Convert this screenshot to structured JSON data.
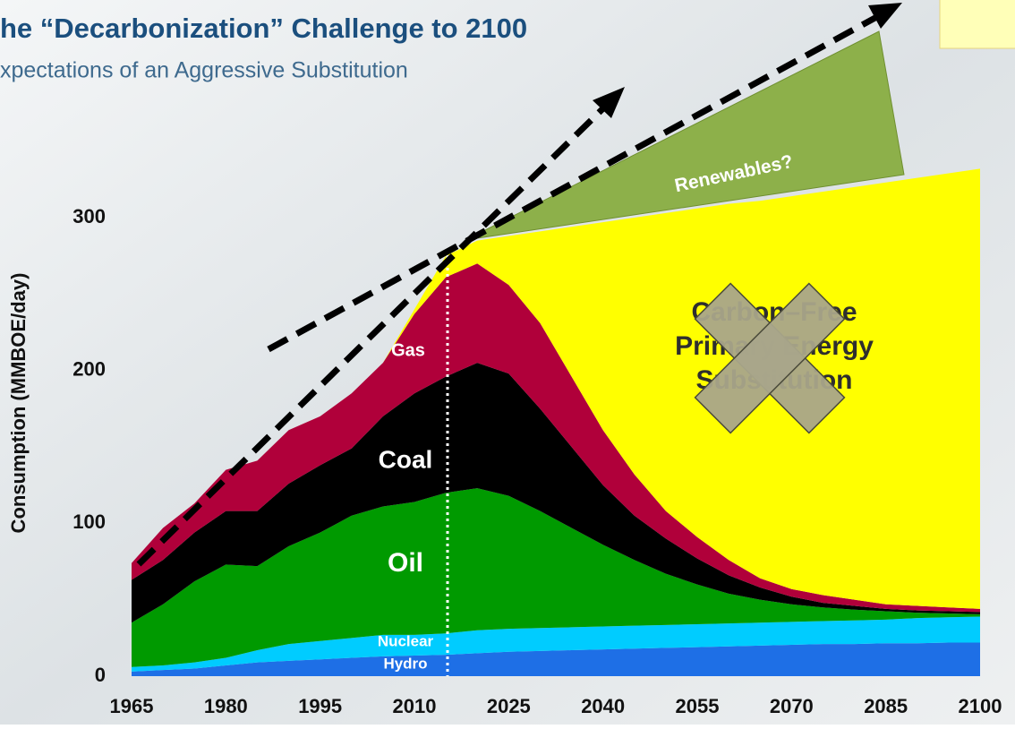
{
  "title": "he “Decarbonization” Challenge to 2100",
  "subtitle": "xpectations of an Aggressive Substitution",
  "chart_data": {
    "type": "stacked-area",
    "y_label": "Consumption (MMBOE/day)",
    "annotation": "Renewables?",
    "x": [
      1965,
      1970,
      1975,
      1980,
      1985,
      1990,
      1995,
      2000,
      2005,
      2010,
      2015,
      2020,
      2025,
      2030,
      2035,
      2040,
      2045,
      2050,
      2055,
      2060,
      2065,
      2070,
      2075,
      2080,
      2085,
      2090,
      2095,
      2100
    ],
    "xlim": [
      1965,
      2100
    ],
    "xticks": [
      1965,
      1980,
      1995,
      2010,
      2025,
      2040,
      2055,
      2070,
      2085,
      2100
    ],
    "ylim": [
      0,
      300
    ],
    "yticks": [
      0,
      100,
      200,
      300
    ],
    "series": [
      {
        "name": "Hydro",
        "color": "#1e6fe6",
        "values": [
          3,
          4,
          5,
          7,
          9,
          10,
          11,
          12,
          13,
          13.5,
          14,
          15,
          16,
          16.5,
          17,
          17.5,
          18,
          18.5,
          19,
          19.5,
          20,
          20.5,
          21,
          21,
          21.5,
          21.5,
          22,
          22
        ]
      },
      {
        "name": "Nuclear",
        "color": "#00ccff",
        "values": [
          3,
          3,
          4,
          5,
          8,
          11,
          12,
          13,
          14,
          13.5,
          14,
          15,
          15,
          15,
          15,
          15,
          15,
          15,
          15,
          15,
          15,
          15,
          15,
          15.5,
          15.5,
          16.5,
          16.5,
          17
        ]
      },
      {
        "name": "Oil",
        "color": "#009a00",
        "values": [
          29,
          40,
          53,
          61,
          55,
          64,
          71,
          80,
          84,
          87,
          92,
          93,
          87,
          76.5,
          65,
          53.5,
          43,
          33.5,
          26,
          19.5,
          15,
          11.5,
          9,
          7,
          5.5,
          3.5,
          2.5,
          1.5
        ]
      },
      {
        "name": "Coal",
        "color": "#000000",
        "values": [
          28,
          29,
          32,
          35,
          36,
          41,
          44,
          44,
          59,
          71,
          76,
          82,
          80,
          67,
          53,
          39,
          29,
          23,
          17,
          12,
          8,
          5,
          3,
          2.5,
          1.5,
          1.5,
          1.5,
          1.5
        ]
      },
      {
        "name": "Gas",
        "color": "#b0003a",
        "values": [
          11,
          21,
          19,
          27,
          33,
          35,
          32,
          36,
          35,
          52,
          65,
          65,
          58,
          56,
          46,
          36,
          27,
          18,
          14,
          10,
          6,
          5,
          5,
          4,
          3,
          3,
          2.5,
          2
        ]
      },
      {
        "name": "Carbon–Free Primary Energy Substitution",
        "color": "#ffff00",
        "values": [
          0,
          0,
          0,
          0,
          0,
          0,
          0,
          0,
          0,
          3,
          14,
          15,
          32,
          60,
          98,
          136,
          168,
          195,
          215,
          233,
          247,
          257,
          264,
          270,
          276,
          280,
          284,
          288
        ]
      }
    ]
  }
}
